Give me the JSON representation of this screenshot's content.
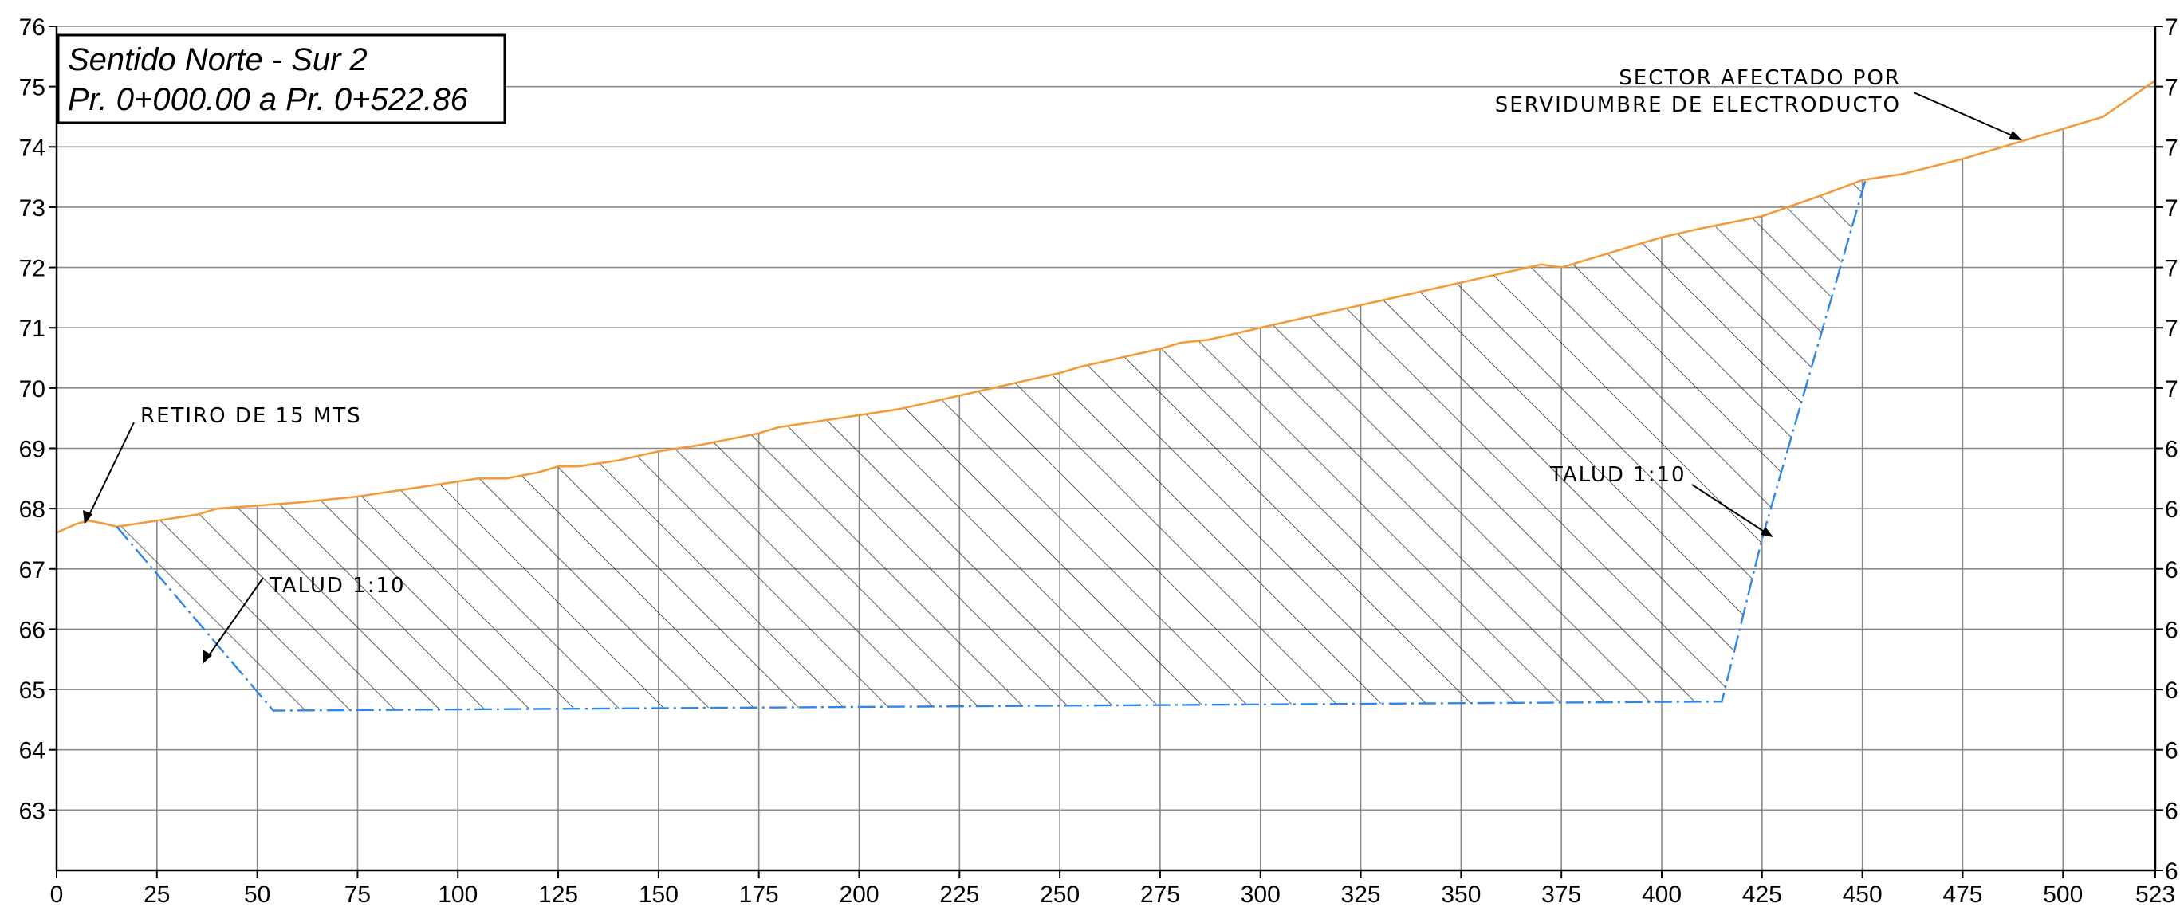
{
  "title": {
    "line1": "Sentido Norte - Sur 2",
    "line2": "Pr. 0+000.00 a Pr. 0+522.86"
  },
  "annotations": {
    "retiro": "RETIRO DE 15 MTS",
    "talud_left": "TALUD 1:10",
    "talud_right": "TALUD 1:10",
    "sector_line1": "SECTOR AFECTADO POR",
    "sector_line2": "SERVIDUMBRE DE ELECTRODUCTO"
  },
  "colors": {
    "terrain": "#f39a3a",
    "excavation": "#2f86e8",
    "grid": "#8a8a8a",
    "hatch": "#333333",
    "frame": "#000000"
  },
  "axes": {
    "x_ticks": [
      "0",
      "25",
      "50",
      "75",
      "100",
      "125",
      "150",
      "175",
      "200",
      "225",
      "250",
      "275",
      "300",
      "325",
      "350",
      "375",
      "400",
      "425",
      "450",
      "475",
      "500",
      "523"
    ],
    "y_ticks_left": [
      "76",
      "75",
      "74",
      "73",
      "72",
      "71",
      "70",
      "69",
      "68",
      "67",
      "66",
      "65",
      "64",
      "63"
    ],
    "y_ticks_right": [
      "7",
      "7",
      "7",
      "7",
      "7",
      "7",
      "7",
      "6",
      "6",
      "6",
      "6",
      "6",
      "6",
      "6",
      "6"
    ],
    "x_range": [
      0,
      523
    ],
    "y_range": [
      62,
      76
    ]
  },
  "chart_data": {
    "type": "line",
    "series": [
      {
        "x": [
          0,
          5,
          8,
          12,
          15,
          20,
          25,
          30,
          35,
          40,
          50,
          60,
          75,
          90,
          100,
          105,
          112,
          120,
          125,
          130,
          135,
          140,
          150,
          160,
          175,
          180,
          190,
          200,
          210,
          220,
          230,
          240,
          250,
          255,
          265,
          275,
          280,
          287,
          300,
          310,
          320,
          330,
          340,
          350,
          360,
          370,
          375,
          380,
          390,
          400,
          410,
          425,
          440,
          450,
          460,
          475,
          500,
          510,
          523
        ],
        "y": [
          67.6,
          67.75,
          67.8,
          67.75,
          67.7,
          67.75,
          67.8,
          67.85,
          67.9,
          68.0,
          68.05,
          68.1,
          68.2,
          68.35,
          68.45,
          68.5,
          68.5,
          68.6,
          68.7,
          68.7,
          68.75,
          68.8,
          68.95,
          69.05,
          69.25,
          69.35,
          69.45,
          69.55,
          69.65,
          69.8,
          69.95,
          70.1,
          70.25,
          70.35,
          70.5,
          70.65,
          70.75,
          70.8,
          71.0,
          71.15,
          71.3,
          71.45,
          71.6,
          71.75,
          71.9,
          72.05,
          72.0,
          72.1,
          72.3,
          72.5,
          72.65,
          72.85,
          73.2,
          73.45,
          73.55,
          73.8,
          74.3,
          74.5,
          75.1
        ]
      },
      {
        "x": [
          15,
          54,
          415,
          425,
          451
        ],
        "y": [
          67.7,
          64.65,
          64.8,
          67.5,
          73.5
        ]
      }
    ],
    "xlim": [
      0,
      523
    ],
    "ylim": [
      62,
      76
    ],
    "grid": true
  }
}
